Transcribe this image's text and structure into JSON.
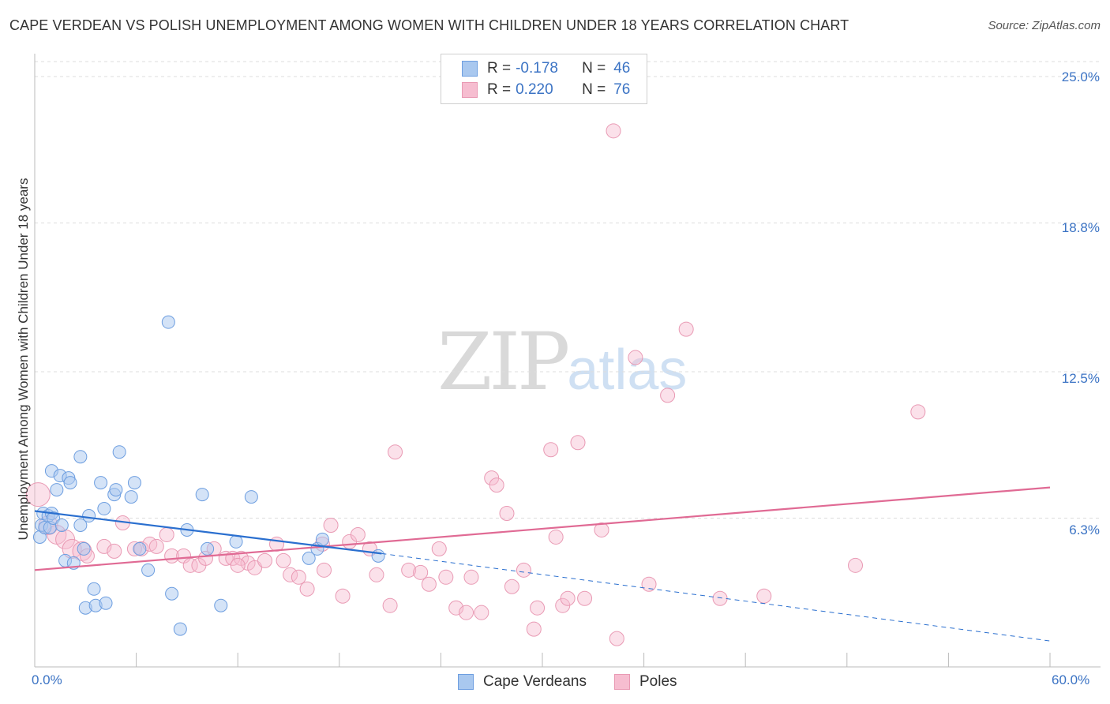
{
  "title": "CAPE VERDEAN VS POLISH UNEMPLOYMENT AMONG WOMEN WITH CHILDREN UNDER 18 YEARS CORRELATION CHART",
  "source": "Source: ZipAtlas.com",
  "watermark": {
    "zip": "ZIP",
    "atlas": "atlas"
  },
  "legend": {
    "rows": [
      {
        "r_label": "R =",
        "r_value": "-0.178",
        "n_label": "N =",
        "n_value": "46"
      },
      {
        "r_label": "R =",
        "r_value": "0.220",
        "n_label": "N =",
        "n_value": "76"
      }
    ]
  },
  "chart_data": {
    "type": "scatter",
    "title": "CAPE VERDEAN VS POLISH UNEMPLOYMENT AMONG WOMEN WITH CHILDREN UNDER 18 YEARS CORRELATION CHART",
    "xlabel": "",
    "ylabel": "Unemployment Among Women with Children Under 18 years",
    "xlim": [
      0,
      60
    ],
    "ylim": [
      0,
      25.9
    ],
    "x_tick_labels": [
      "0.0%",
      "60.0%"
    ],
    "y_ticks": [
      6.3,
      12.5,
      18.8,
      25.0
    ],
    "y_tick_labels": [
      "6.3%",
      "12.5%",
      "18.8%",
      "25.0%"
    ],
    "grid": "horizontal dashed",
    "legend_position": "bottom-center",
    "colors": {
      "blue_fill": "#a9c8ef",
      "blue_stroke": "#6d9ee0",
      "blue_line": "#2a6fcf",
      "pink_fill": "#f6bdd0",
      "pink_stroke": "#e99ab4",
      "pink_line": "#e06a94"
    },
    "series": [
      {
        "name": "Cape Verdeans",
        "stats": {
          "R": -0.178,
          "N": 46
        },
        "trend": {
          "x0": 0,
          "y0": 6.6,
          "x1": 20.5,
          "y1": 4.8,
          "dashed_to_x": 60,
          "dashed_to_y": 1.1
        },
        "points": [
          [
            0.3,
            5.5
          ],
          [
            0.4,
            6.0
          ],
          [
            0.5,
            6.5
          ],
          [
            0.6,
            5.9
          ],
          [
            0.8,
            6.4
          ],
          [
            0.9,
            5.9
          ],
          [
            1.0,
            6.5
          ],
          [
            1.1,
            6.3
          ],
          [
            1.0,
            8.3
          ],
          [
            1.3,
            7.5
          ],
          [
            1.5,
            8.1
          ],
          [
            1.6,
            6.0
          ],
          [
            1.8,
            4.5
          ],
          [
            2.0,
            8.0
          ],
          [
            2.1,
            7.8
          ],
          [
            2.3,
            4.4
          ],
          [
            2.7,
            6.0
          ],
          [
            2.7,
            8.9
          ],
          [
            2.9,
            5.0
          ],
          [
            3.0,
            2.5
          ],
          [
            3.2,
            6.4
          ],
          [
            3.5,
            3.3
          ],
          [
            3.6,
            2.6
          ],
          [
            3.9,
            7.8
          ],
          [
            4.2,
            2.7
          ],
          [
            4.1,
            6.7
          ],
          [
            4.7,
            7.3
          ],
          [
            4.8,
            7.5
          ],
          [
            5.0,
            9.1
          ],
          [
            5.7,
            7.2
          ],
          [
            5.9,
            7.8
          ],
          [
            6.2,
            5.0
          ],
          [
            6.7,
            4.1
          ],
          [
            7.9,
            14.6
          ],
          [
            8.1,
            3.1
          ],
          [
            8.6,
            1.6
          ],
          [
            9.0,
            5.8
          ],
          [
            9.9,
            7.3
          ],
          [
            10.2,
            5.0
          ],
          [
            11.0,
            2.6
          ],
          [
            11.9,
            5.3
          ],
          [
            12.8,
            7.2
          ],
          [
            16.2,
            4.6
          ],
          [
            16.7,
            5.0
          ],
          [
            17.0,
            5.4
          ],
          [
            20.3,
            4.7
          ]
        ]
      },
      {
        "name": "Poles",
        "stats": {
          "R": 0.22,
          "N": 76
        },
        "trend": {
          "x0": 0,
          "y0": 4.1,
          "x1": 60,
          "y1": 7.6
        },
        "points": [
          [
            0.2,
            7.3
          ],
          [
            0.8,
            6.0
          ],
          [
            1.3,
            5.6
          ],
          [
            1.8,
            5.4
          ],
          [
            2.2,
            5.0
          ],
          [
            2.8,
            4.9
          ],
          [
            3.1,
            4.7
          ],
          [
            4.1,
            5.1
          ],
          [
            4.7,
            4.9
          ],
          [
            5.2,
            6.1
          ],
          [
            5.9,
            5.0
          ],
          [
            6.3,
            5.0
          ],
          [
            6.8,
            5.2
          ],
          [
            7.2,
            5.1
          ],
          [
            7.8,
            5.6
          ],
          [
            8.1,
            4.7
          ],
          [
            8.8,
            4.7
          ],
          [
            9.2,
            4.3
          ],
          [
            9.7,
            4.3
          ],
          [
            10.1,
            4.6
          ],
          [
            10.6,
            5.0
          ],
          [
            11.3,
            4.6
          ],
          [
            11.7,
            4.6
          ],
          [
            12.2,
            4.6
          ],
          [
            12.6,
            4.4
          ],
          [
            13.0,
            4.2
          ],
          [
            13.6,
            4.5
          ],
          [
            14.3,
            5.2
          ],
          [
            14.7,
            4.5
          ],
          [
            15.1,
            3.9
          ],
          [
            15.6,
            3.8
          ],
          [
            16.1,
            3.3
          ],
          [
            17.1,
            4.1
          ],
          [
            17.5,
            6.0
          ],
          [
            18.2,
            3.0
          ],
          [
            18.6,
            5.3
          ],
          [
            19.1,
            5.6
          ],
          [
            19.8,
            5.0
          ],
          [
            20.2,
            3.9
          ],
          [
            21.0,
            2.6
          ],
          [
            21.3,
            9.1
          ],
          [
            22.1,
            4.1
          ],
          [
            22.8,
            4.0
          ],
          [
            23.3,
            3.5
          ],
          [
            23.9,
            5.0
          ],
          [
            24.3,
            3.8
          ],
          [
            24.9,
            2.5
          ],
          [
            25.5,
            2.3
          ],
          [
            25.8,
            3.8
          ],
          [
            26.4,
            2.3
          ],
          [
            27.0,
            8.0
          ],
          [
            27.3,
            7.7
          ],
          [
            27.9,
            6.5
          ],
          [
            28.2,
            3.4
          ],
          [
            28.9,
            4.1
          ],
          [
            29.5,
            1.6
          ],
          [
            29.7,
            2.5
          ],
          [
            30.5,
            9.2
          ],
          [
            30.8,
            5.5
          ],
          [
            31.2,
            2.6
          ],
          [
            31.5,
            2.9
          ],
          [
            32.1,
            9.5
          ],
          [
            32.5,
            2.9
          ],
          [
            33.5,
            5.8
          ],
          [
            34.2,
            22.7
          ],
          [
            34.4,
            1.2
          ],
          [
            35.5,
            13.1
          ],
          [
            36.3,
            3.5
          ],
          [
            37.4,
            11.5
          ],
          [
            38.5,
            14.3
          ],
          [
            40.5,
            2.9
          ],
          [
            43.1,
            3.0
          ],
          [
            48.5,
            4.3
          ],
          [
            52.2,
            10.8
          ],
          [
            17.0,
            5.2
          ],
          [
            12.0,
            4.3
          ]
        ]
      }
    ]
  }
}
